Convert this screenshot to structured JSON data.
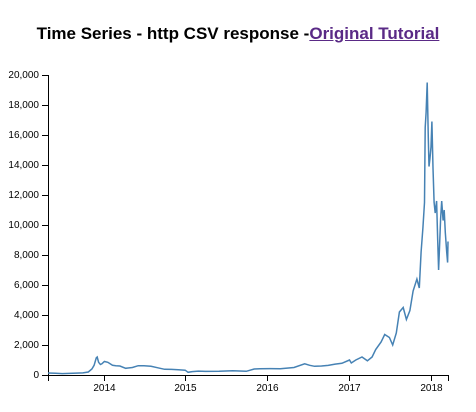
{
  "page": {
    "title_prefix": "Time Series - http CSV response -",
    "title_link": "Original Tutorial"
  },
  "chart_data": {
    "type": "line",
    "title": "Time Series - http CSV response -Original Tutorial",
    "xlabel": "",
    "ylabel": "",
    "xlim": [
      "2013-04-28",
      "2018-03-20"
    ],
    "ylim": [
      0,
      20000
    ],
    "x_ticks": [
      "2014",
      "2015",
      "2016",
      "2017",
      "2018"
    ],
    "y_ticks": [
      "0",
      "2,000",
      "4,000",
      "6,000",
      "8,000",
      "10,000",
      "12,000",
      "14,000",
      "16,000",
      "18,000",
      "20,000"
    ],
    "grid": false,
    "series_color": "#4682b4",
    "series": [
      {
        "name": "",
        "x": [
          "2013-04-28",
          "2013-06-01",
          "2013-07-01",
          "2013-08-01",
          "2013-09-01",
          "2013-10-01",
          "2013-10-25",
          "2013-11-10",
          "2013-11-20",
          "2013-11-30",
          "2013-12-04",
          "2013-12-10",
          "2013-12-18",
          "2013-12-25",
          "2014-01-05",
          "2014-01-20",
          "2014-02-10",
          "2014-02-25",
          "2014-03-15",
          "2014-04-10",
          "2014-05-10",
          "2014-06-05",
          "2014-07-01",
          "2014-08-01",
          "2014-09-01",
          "2014-10-01",
          "2014-11-01",
          "2014-12-01",
          "2015-01-01",
          "2015-01-14",
          "2015-02-01",
          "2015-03-01",
          "2015-04-01",
          "2015-06-01",
          "2015-08-01",
          "2015-10-01",
          "2015-11-05",
          "2015-12-01",
          "2016-01-15",
          "2016-03-01",
          "2016-05-01",
          "2016-06-18",
          "2016-07-10",
          "2016-08-01",
          "2016-09-01",
          "2016-10-01",
          "2016-11-01",
          "2016-12-01",
          "2017-01-04",
          "2017-01-12",
          "2017-02-01",
          "2017-03-01",
          "2017-03-25",
          "2017-04-15",
          "2017-05-01",
          "2017-05-25",
          "2017-06-10",
          "2017-07-01",
          "2017-07-16",
          "2017-08-01",
          "2017-08-15",
          "2017-09-01",
          "2017-09-15",
          "2017-10-01",
          "2017-10-15",
          "2017-11-01",
          "2017-11-12",
          "2017-11-20",
          "2017-11-28",
          "2017-12-05",
          "2017-12-08",
          "2017-12-12",
          "2017-12-17",
          "2017-12-22",
          "2017-12-25",
          "2017-12-29",
          "2018-01-03",
          "2018-01-07",
          "2018-01-12",
          "2018-01-17",
          "2018-01-22",
          "2018-01-28",
          "2018-02-02",
          "2018-02-06",
          "2018-02-10",
          "2018-02-15",
          "2018-02-20",
          "2018-02-26",
          "2018-03-03",
          "2018-03-08",
          "2018-03-14",
          "2018-03-18",
          "2018-03-20"
        ],
        "values": [
          135,
          120,
          90,
          105,
          130,
          140,
          200,
          400,
          650,
          1150,
          1200,
          850,
          700,
          750,
          900,
          850,
          650,
          620,
          600,
          450,
          500,
          620,
          620,
          580,
          480,
          380,
          370,
          350,
          320,
          180,
          230,
          260,
          240,
          250,
          280,
          250,
          400,
          420,
          430,
          420,
          500,
          750,
          650,
          580,
          600,
          640,
          730,
          780,
          1000,
          800,
          1000,
          1200,
          950,
          1200,
          1700,
          2200,
          2700,
          2500,
          2000,
          2800,
          4200,
          4500,
          3700,
          4300,
          5600,
          6400,
          5800,
          8200,
          9800,
          11500,
          16500,
          17500,
          19500,
          15800,
          13900,
          14400,
          15200,
          16900,
          13800,
          11500,
          10800,
          11600,
          9000,
          7000,
          8500,
          10400,
          11600,
          10300,
          11000,
          9500,
          8200,
          7500,
          8900
        ]
      }
    ]
  }
}
